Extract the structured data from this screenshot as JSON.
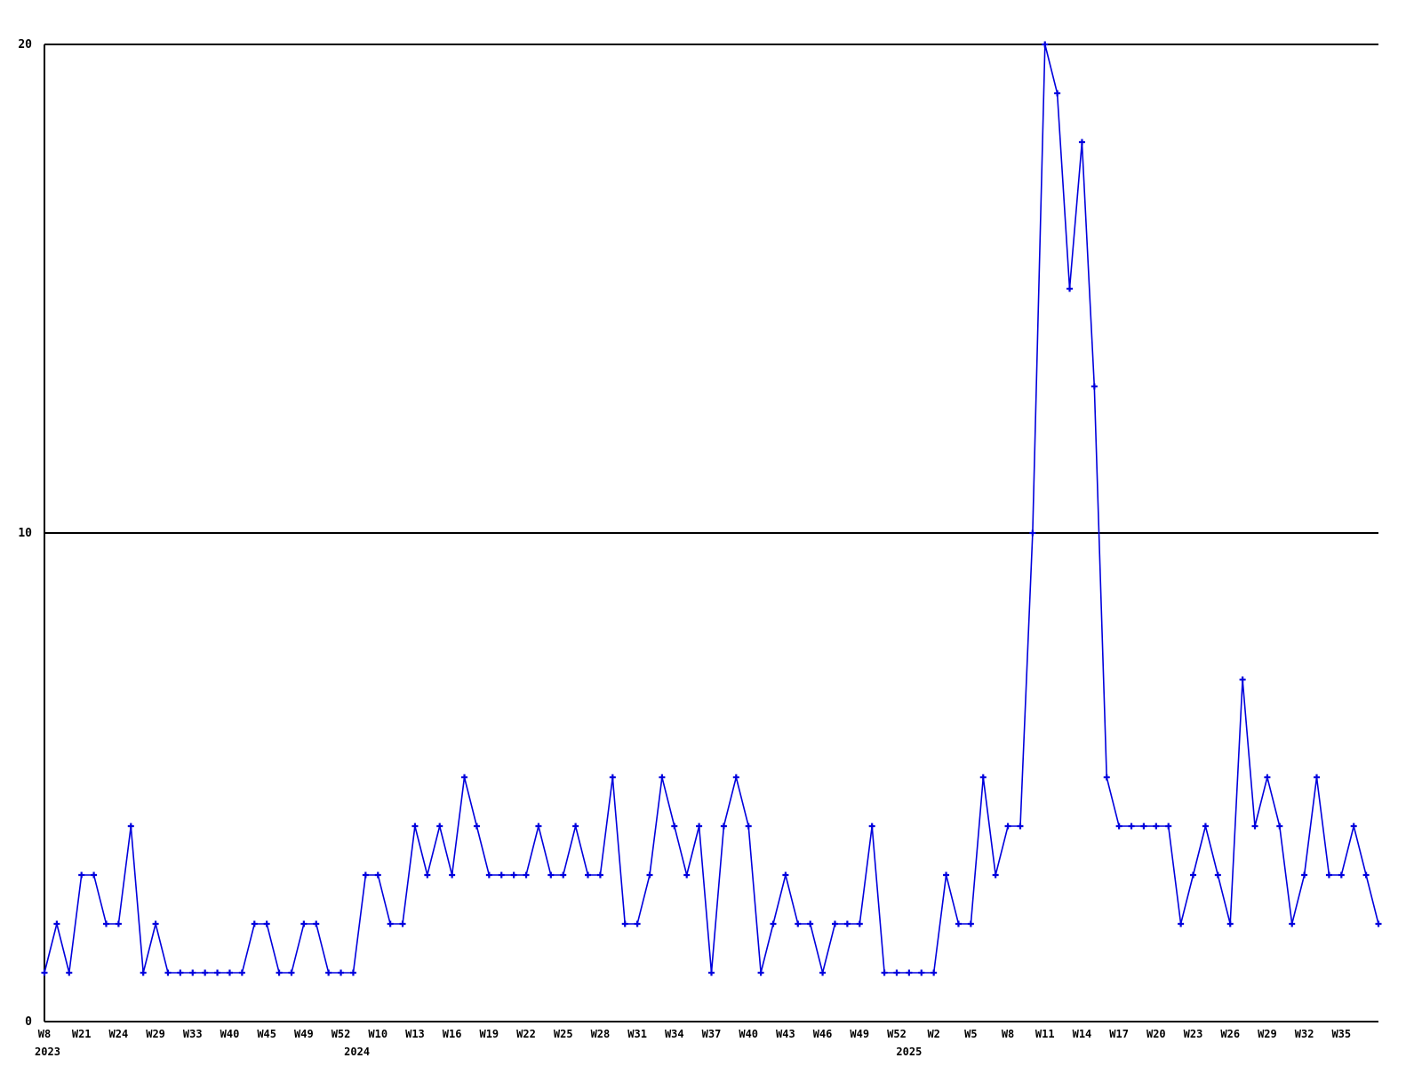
{
  "chart_data": {
    "type": "line",
    "title": "",
    "xlabel": "",
    "ylabel": "",
    "ylim": [
      0,
      20
    ],
    "y_ticks": [
      0,
      10,
      20
    ],
    "gridlines_at": [
      10,
      20
    ],
    "grid_on": true,
    "legend": "none",
    "line_color": "#0000dd",
    "marker": "plus",
    "axis_color": "#000000",
    "background_color": "#ffffff",
    "x_tick_every": 3,
    "x_tick_labels": [
      "W8",
      "W21",
      "W24",
      "W29",
      "W33",
      "W40",
      "W45",
      "W49",
      "W52",
      "W10",
      "W13",
      "W16",
      "W19",
      "W22",
      "W25",
      "W28",
      "W31",
      "W34",
      "W37",
      "W40",
      "W43",
      "W46",
      "W49",
      "W52",
      "W2",
      "W5",
      "W8",
      "W11",
      "W14",
      "W17",
      "W20",
      "W23",
      "W26",
      "W29",
      "W32",
      "W35"
    ],
    "year_labels": [
      {
        "text": "2023",
        "index": 0.25
      },
      {
        "text": "2024",
        "index": 25.3
      },
      {
        "text": "2025",
        "index": 70
      }
    ],
    "values": [
      1,
      2,
      1,
      3,
      3,
      2,
      2,
      4,
      1,
      2,
      1,
      1,
      1,
      1,
      1,
      1,
      1,
      2,
      2,
      1,
      1,
      2,
      2,
      1,
      1,
      1,
      3,
      3,
      2,
      2,
      4,
      3,
      4,
      3,
      5,
      4,
      3,
      3,
      3,
      3,
      4,
      3,
      3,
      4,
      3,
      3,
      5,
      2,
      2,
      3,
      5,
      4,
      3,
      4,
      1,
      4,
      5,
      4,
      1,
      2,
      3,
      2,
      2,
      1,
      2,
      2,
      2,
      4,
      1,
      1,
      1,
      1,
      1,
      3,
      2,
      2,
      5,
      3,
      4,
      4,
      10,
      20,
      19,
      15,
      18,
      13,
      5,
      4,
      4,
      4,
      4,
      4,
      2,
      3,
      4,
      3,
      2,
      7,
      4,
      5,
      4,
      2,
      3,
      5,
      3,
      3,
      4,
      3,
      2
    ]
  },
  "geometry_note": "values plotted weekly; ticks label every 3rd point"
}
